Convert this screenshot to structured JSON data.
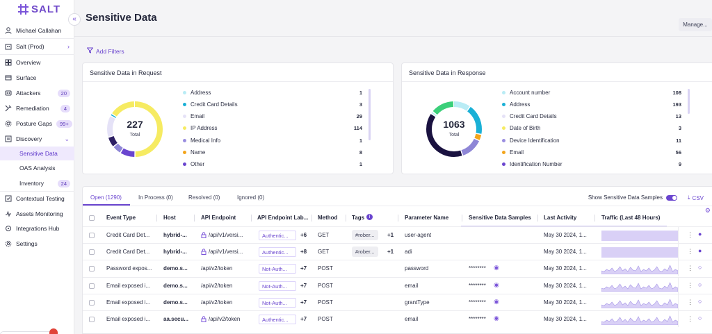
{
  "app": {
    "logo_text": "SALT"
  },
  "sidebar": {
    "user": "Michael Callahan",
    "environment": "Salt (Prod)",
    "items": [
      {
        "label": "Overview",
        "icon": "grid-icon",
        "badge": ""
      },
      {
        "label": "Surface",
        "icon": "surface-icon",
        "badge": ""
      },
      {
        "label": "Attackers",
        "icon": "attackers-icon",
        "badge": "20"
      },
      {
        "label": "Remediation",
        "icon": "remediation-icon",
        "badge": "4"
      },
      {
        "label": "Posture Gaps",
        "icon": "gear-icon",
        "badge": "99+"
      },
      {
        "label": "Discovery",
        "icon": "discovery-icon",
        "badge": ""
      }
    ],
    "discovery_sub": [
      {
        "label": "Sensitive Data",
        "badge": ""
      },
      {
        "label": "OAS Analysis",
        "badge": ""
      },
      {
        "label": "Inventory",
        "badge": "24"
      }
    ],
    "bottom_items": [
      {
        "label": "Contextual Testing",
        "icon": "testing-icon"
      },
      {
        "label": "Assets Monitoring",
        "icon": "monitoring-icon"
      },
      {
        "label": "Integrations Hub",
        "icon": "integrations-icon"
      },
      {
        "label": "Settings",
        "icon": "settings-icon"
      }
    ]
  },
  "header": {
    "title": "Sensitive Data",
    "manage_label": "Manage..."
  },
  "filters": {
    "add_filters_label": "Add Filters"
  },
  "request_card": {
    "title": "Sensitive Data in Request",
    "total": "227",
    "total_label": "Total",
    "legend": [
      {
        "label": "Address",
        "value": "1",
        "color": "#b9ecf5"
      },
      {
        "label": "Credit Card Details",
        "value": "3",
        "color": "#1ab0d6"
      },
      {
        "label": "Email",
        "value": "29",
        "color": "#e5e2f7"
      },
      {
        "label": "IP Address",
        "value": "114",
        "color": "#f6eb62"
      },
      {
        "label": "Medical Info",
        "value": "1",
        "color": "#9a8ee0"
      },
      {
        "label": "Name",
        "value": "8",
        "color": "#f3a51c"
      },
      {
        "label": "Other",
        "value": "1",
        "color": "#6a45cf"
      }
    ],
    "ring": [
      {
        "value": 114,
        "color": "#f6eb62"
      },
      {
        "value": 20,
        "color": "#6a45cf"
      },
      {
        "value": 12,
        "color": "#8e86d6"
      },
      {
        "value": 14,
        "color": "#2d1f64"
      },
      {
        "value": 29,
        "color": "#e5e2f7"
      },
      {
        "value": 3,
        "color": "#1ab0d6"
      },
      {
        "value": 35,
        "color": "#f6eb62"
      }
    ]
  },
  "response_card": {
    "title": "Sensitive Data in Response",
    "total": "1063",
    "total_label": "Total",
    "legend": [
      {
        "label": "Account number",
        "value": "108",
        "color": "#b9ecf5"
      },
      {
        "label": "Address",
        "value": "193",
        "color": "#1ab0d6"
      },
      {
        "label": "Credit Card Details",
        "value": "13",
        "color": "#e5e2f7"
      },
      {
        "label": "Date of Birth",
        "value": "3",
        "color": "#f6eb62"
      },
      {
        "label": "Device Identification",
        "value": "11",
        "color": "#9a8ee0"
      },
      {
        "label": "Email",
        "value": "56",
        "color": "#f3a51c"
      },
      {
        "label": "Identification Number",
        "value": "9",
        "color": "#6a45cf"
      }
    ],
    "ring": [
      {
        "value": 108,
        "color": "#b9ecf5"
      },
      {
        "value": 193,
        "color": "#1ab0d6"
      },
      {
        "value": 40,
        "color": "#f3a51c"
      },
      {
        "value": 140,
        "color": "#8e86d6"
      },
      {
        "value": 420,
        "color": "#1a1240"
      },
      {
        "value": 15,
        "color": "#b9ecf5"
      },
      {
        "value": 147,
        "color": "#3bcf7a"
      }
    ]
  },
  "tabs": {
    "items": [
      "Open (1290)",
      "In Process (0)",
      "Resolved (0)",
      "Ignored (0)"
    ],
    "show_samples_label": "Show Sensitive Data Samples",
    "csv_label": "CSV"
  },
  "table": {
    "headers": [
      "Event Type",
      "Host",
      "API Endpoint",
      "API Endpoint Lab...",
      "Method",
      "Tags",
      "Parameter Name",
      "Sensitive Data Samples",
      "Last Activity",
      "Traffic (Last 48 Hours)"
    ],
    "rows": [
      {
        "event": "Credit Card Det...",
        "host": "hybrid-...",
        "endpoint": "/api/v1/versi...",
        "lock": true,
        "label": "Authentic...",
        "plus": "+6",
        "method": "GET",
        "tag": "#rober...",
        "tag_plus": "+1",
        "param": "user-agent",
        "sample": "",
        "last": "May 30 2024, 1...",
        "traffic": "flat"
      },
      {
        "event": "Credit Card Det...",
        "host": "hybrid-...",
        "endpoint": "/api/v1/versi...",
        "lock": true,
        "label": "Authentic...",
        "plus": "+8",
        "method": "GET",
        "tag": "#rober...",
        "tag_plus": "+1",
        "param": "adi",
        "sample": "",
        "last": "May 30 2024, 1...",
        "traffic": "flat"
      },
      {
        "event": "Password expos...",
        "host": "demo.s...",
        "endpoint": "/api/v2/token",
        "lock": false,
        "label": "Not-Auth...",
        "plus": "+7",
        "method": "POST",
        "tag": "",
        "tag_plus": "",
        "param": "password",
        "sample": "********",
        "last": "May 30 2024, 1...",
        "traffic": "spiky"
      },
      {
        "event": "Email exposed i...",
        "host": "demo.s...",
        "endpoint": "/api/v2/token",
        "lock": false,
        "label": "Not-Auth...",
        "plus": "+7",
        "method": "POST",
        "tag": "",
        "tag_plus": "",
        "param": "email",
        "sample": "********",
        "last": "May 30 2024, 1...",
        "traffic": "spiky"
      },
      {
        "event": "Email exposed i...",
        "host": "demo.s...",
        "endpoint": "/api/v2/token",
        "lock": false,
        "label": "Not-Auth...",
        "plus": "+7",
        "method": "POST",
        "tag": "",
        "tag_plus": "",
        "param": "grantType",
        "sample": "********",
        "last": "May 30 2024, 1...",
        "traffic": "spiky"
      },
      {
        "event": "Email exposed i...",
        "host": "aa.secu...",
        "endpoint": "/api/v2/token",
        "lock": true,
        "label": "Authentic...",
        "plus": "+7",
        "method": "POST",
        "tag": "",
        "tag_plus": "",
        "param": "email",
        "sample": "********",
        "last": "May 30 2024, 1...",
        "traffic": "spiky"
      }
    ]
  },
  "colors": {
    "accent": "#6a45cf",
    "badge_bg": "#e6ddfb"
  }
}
